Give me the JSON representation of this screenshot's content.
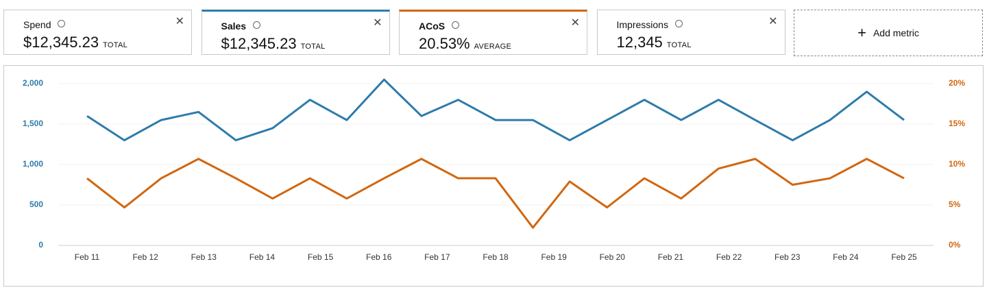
{
  "metrics": [
    {
      "name": "Spend",
      "value": "$12,345.23",
      "unit": "TOTAL"
    },
    {
      "name": "Sales",
      "value": "$12,345.23",
      "unit": "TOTAL",
      "color": "#2d7bab"
    },
    {
      "name": "ACoS",
      "value": "20.53%",
      "unit": "AVERAGE",
      "color": "#d2660f"
    },
    {
      "name": "Impressions",
      "value": "12,345",
      "unit": "TOTAL"
    }
  ],
  "add_metric": "Add metric",
  "chart_data": {
    "type": "line",
    "x": [
      11,
      11.64,
      12.27,
      12.91,
      13.55,
      14.18,
      14.82,
      15.45,
      16.09,
      16.73,
      17.36,
      18,
      18.64,
      19.27,
      19.91,
      20.55,
      21.18,
      21.82,
      22.45,
      23.09,
      23.73,
      24.36,
      25
    ],
    "xlim": [
      11,
      25
    ],
    "xticks": [
      {
        "value": 11,
        "label": "Feb 11"
      },
      {
        "value": 12,
        "label": "Feb 12"
      },
      {
        "value": 13,
        "label": "Feb 13"
      },
      {
        "value": 14,
        "label": "Feb 14"
      },
      {
        "value": 15,
        "label": "Feb 15"
      },
      {
        "value": 16,
        "label": "Feb 16"
      },
      {
        "value": 17,
        "label": "Feb 17"
      },
      {
        "value": 18,
        "label": "Feb 18"
      },
      {
        "value": 19,
        "label": "Feb 19"
      },
      {
        "value": 20,
        "label": "Feb 20"
      },
      {
        "value": 21,
        "label": "Feb 21"
      },
      {
        "value": 22,
        "label": "Feb 22"
      },
      {
        "value": 23,
        "label": "Feb 23"
      },
      {
        "value": 24,
        "label": "Feb 24"
      },
      {
        "value": 25,
        "label": "Feb 25"
      }
    ],
    "ylim": [
      0,
      2000
    ],
    "yticks": [
      0,
      500,
      {
        "value": 1000,
        "label": "1,000"
      },
      {
        "value": 1500,
        "label": "1,500"
      },
      {
        "value": 2000,
        "label": "2,000"
      }
    ],
    "y2lim": [
      0,
      20
    ],
    "y2ticks": [
      {
        "value": 0,
        "label": "0%"
      },
      {
        "value": 5,
        "label": "5%"
      },
      {
        "value": 10,
        "label": "10%"
      },
      {
        "value": 15,
        "label": "15%"
      },
      {
        "value": 20,
        "label": "20%"
      }
    ],
    "grid": true,
    "series": [
      {
        "color": "#2d7bab",
        "values": [
          1600,
          1300,
          1550,
          1650,
          1300,
          1450,
          1800,
          1550,
          2050,
          1600,
          1800,
          1550,
          1550,
          1300,
          1550,
          1800,
          1550,
          1800,
          1550,
          1300,
          1550,
          1900,
          1550
        ]
      },
      {
        "color": "#d2660f",
        "axis": "y2",
        "values": [
          8.3,
          4.7,
          8.3,
          10.7,
          8.3,
          5.8,
          8.3,
          5.8,
          8.3,
          10.7,
          8.3,
          8.3,
          2.2,
          7.9,
          4.7,
          8.3,
          5.8,
          9.5,
          10.7,
          7.5,
          8.3,
          10.7,
          8.3
        ]
      }
    ]
  }
}
